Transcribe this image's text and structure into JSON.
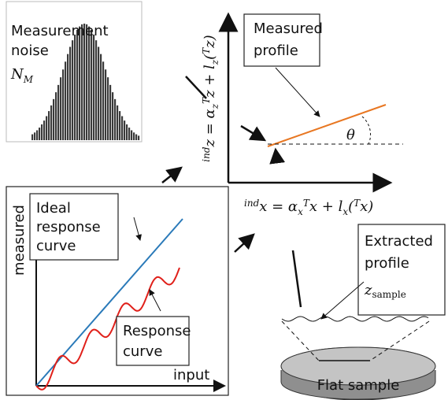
{
  "noise": {
    "label": [
      "Measurement",
      "noise"
    ],
    "symbol": [
      "N",
      "M"
    ]
  },
  "measured_profile": {
    "label": [
      "Measured",
      "profile"
    ],
    "angle": "θ"
  },
  "y_formula": [
    "ind",
    "z = α",
    "z",
    "T",
    "z + l",
    "z",
    "(",
    "T",
    "z)"
  ],
  "x_formula": [
    "ind",
    "x = α",
    "x",
    "T",
    "x + l",
    "x",
    "(",
    "T",
    "x)"
  ],
  "response_plot": {
    "y_label": "measured",
    "x_label": "input",
    "ideal": [
      "Ideal",
      "response",
      "curve"
    ],
    "response": [
      "Response",
      "curve"
    ]
  },
  "extracted": {
    "label": [
      "Extracted",
      "profile"
    ],
    "symbol": [
      "z",
      "sample"
    ]
  },
  "sample": "Flat sample"
}
